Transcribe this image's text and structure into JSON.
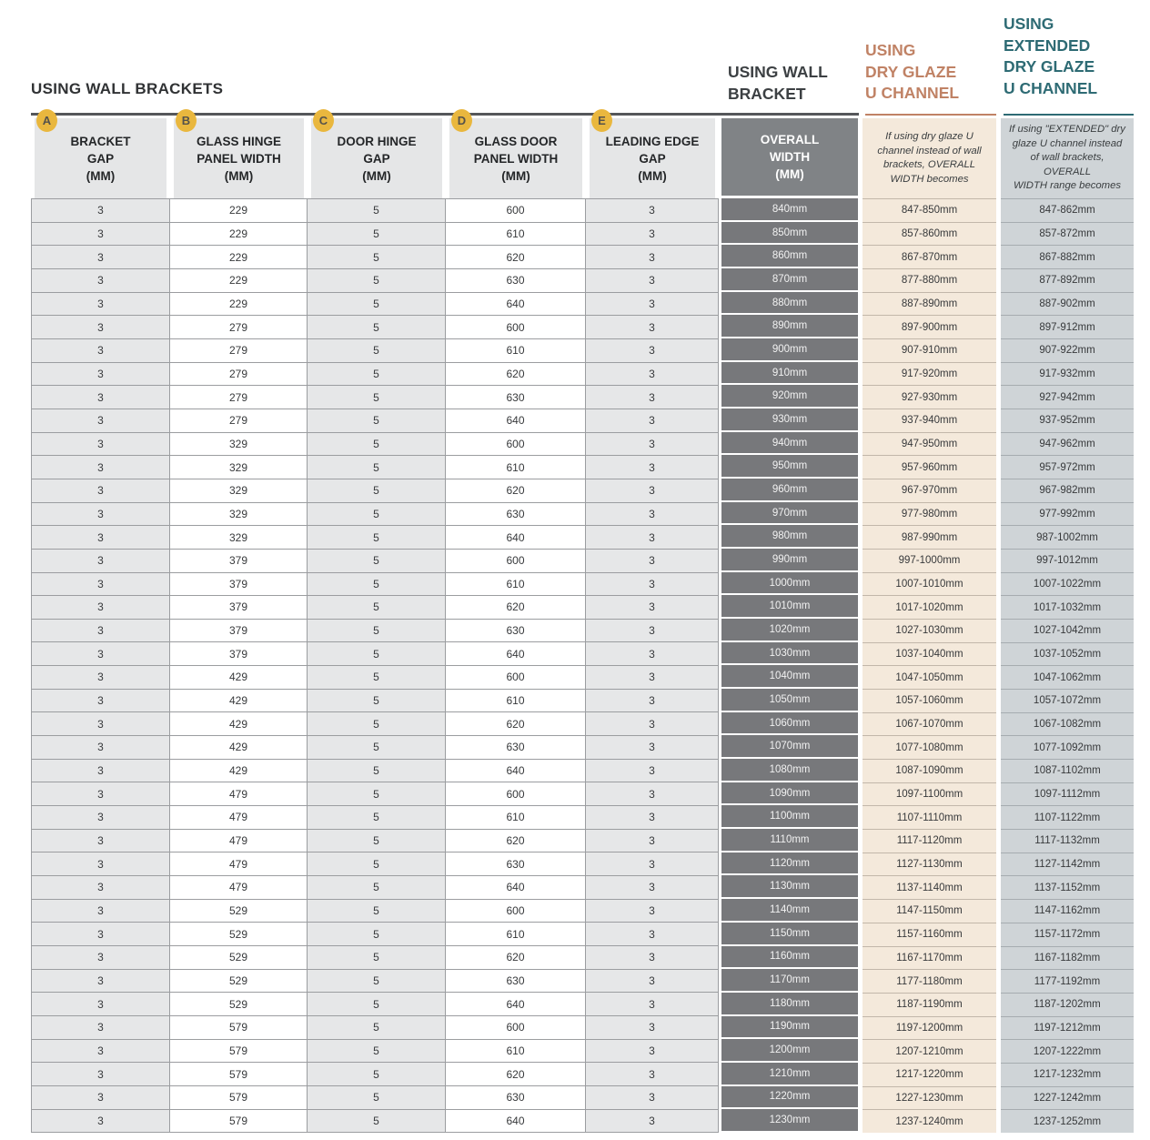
{
  "title": "USING WALL BRACKETS",
  "column_group_headers": {
    "wall_bracket": {
      "label": "USING WALL\nBRACKET",
      "color": "#3C4043"
    },
    "dry_glaze": {
      "label": "USING\nDRY GLAZE\nU CHANNEL",
      "color": "#C08265"
    },
    "extended_dry_glaze": {
      "label": "USING\nEXTENDED\nDRY GLAZE\nU CHANNEL",
      "color": "#2E6B74"
    }
  },
  "colors": {
    "badge_gold": "#E9B73E",
    "dark_column": "#77787B",
    "cream_column": "#F4E9DB",
    "bluegray_column": "#CFD4D7",
    "light_gray_cell": "#E6E7E8",
    "rule_dark": "#55575A"
  },
  "table": {
    "columns": [
      {
        "id": "bracket_gap",
        "badge": "A",
        "header": "BRACKET\nGAP\n(MM)",
        "style": "gray"
      },
      {
        "id": "glass_hinge_panel_width",
        "badge": "B",
        "header": "GLASS HINGE\nPANEL WIDTH\n(MM)",
        "style": "white"
      },
      {
        "id": "door_hinge_gap",
        "badge": "C",
        "header": "DOOR HINGE\nGAP\n(MM)",
        "style": "gray"
      },
      {
        "id": "glass_door_panel_width",
        "badge": "D",
        "header": "GLASS DOOR\nPANEL WIDTH\n(MM)",
        "style": "white"
      },
      {
        "id": "leading_edge_gap",
        "badge": "E",
        "header": "LEADING EDGE\nGAP\n(MM)",
        "style": "gray"
      },
      {
        "id": "overall_width",
        "header": "OVERALL\nWIDTH\n(MM)",
        "style": "dark"
      },
      {
        "id": "dry_glaze_width",
        "note": "If using dry glaze U\nchannel instead of wall\nbrackets, OVERALL\nWIDTH becomes",
        "style": "cream"
      },
      {
        "id": "extended_dry_glaze_width",
        "note": "If using \"EXTENDED\" dry\nglaze U channel instead\nof wall brackets, OVERALL\nWIDTH range becomes",
        "style": "bluegray"
      }
    ],
    "rows": [
      [
        "3",
        "229",
        "5",
        "600",
        "3",
        "840mm",
        "847-850mm",
        "847-862mm"
      ],
      [
        "3",
        "229",
        "5",
        "610",
        "3",
        "850mm",
        "857-860mm",
        "857-872mm"
      ],
      [
        "3",
        "229",
        "5",
        "620",
        "3",
        "860mm",
        "867-870mm",
        "867-882mm"
      ],
      [
        "3",
        "229",
        "5",
        "630",
        "3",
        "870mm",
        "877-880mm",
        "877-892mm"
      ],
      [
        "3",
        "229",
        "5",
        "640",
        "3",
        "880mm",
        "887-890mm",
        "887-902mm"
      ],
      [
        "3",
        "279",
        "5",
        "600",
        "3",
        "890mm",
        "897-900mm",
        "897-912mm"
      ],
      [
        "3",
        "279",
        "5",
        "610",
        "3",
        "900mm",
        "907-910mm",
        "907-922mm"
      ],
      [
        "3",
        "279",
        "5",
        "620",
        "3",
        "910mm",
        "917-920mm",
        "917-932mm"
      ],
      [
        "3",
        "279",
        "5",
        "630",
        "3",
        "920mm",
        "927-930mm",
        "927-942mm"
      ],
      [
        "3",
        "279",
        "5",
        "640",
        "3",
        "930mm",
        "937-940mm",
        "937-952mm"
      ],
      [
        "3",
        "329",
        "5",
        "600",
        "3",
        "940mm",
        "947-950mm",
        "947-962mm"
      ],
      [
        "3",
        "329",
        "5",
        "610",
        "3",
        "950mm",
        "957-960mm",
        "957-972mm"
      ],
      [
        "3",
        "329",
        "5",
        "620",
        "3",
        "960mm",
        "967-970mm",
        "967-982mm"
      ],
      [
        "3",
        "329",
        "5",
        "630",
        "3",
        "970mm",
        "977-980mm",
        "977-992mm"
      ],
      [
        "3",
        "329",
        "5",
        "640",
        "3",
        "980mm",
        "987-990mm",
        "987-1002mm"
      ],
      [
        "3",
        "379",
        "5",
        "600",
        "3",
        "990mm",
        "997-1000mm",
        "997-1012mm"
      ],
      [
        "3",
        "379",
        "5",
        "610",
        "3",
        "1000mm",
        "1007-1010mm",
        "1007-1022mm"
      ],
      [
        "3",
        "379",
        "5",
        "620",
        "3",
        "1010mm",
        "1017-1020mm",
        "1017-1032mm"
      ],
      [
        "3",
        "379",
        "5",
        "630",
        "3",
        "1020mm",
        "1027-1030mm",
        "1027-1042mm"
      ],
      [
        "3",
        "379",
        "5",
        "640",
        "3",
        "1030mm",
        "1037-1040mm",
        "1037-1052mm"
      ],
      [
        "3",
        "429",
        "5",
        "600",
        "3",
        "1040mm",
        "1047-1050mm",
        "1047-1062mm"
      ],
      [
        "3",
        "429",
        "5",
        "610",
        "3",
        "1050mm",
        "1057-1060mm",
        "1057-1072mm"
      ],
      [
        "3",
        "429",
        "5",
        "620",
        "3",
        "1060mm",
        "1067-1070mm",
        "1067-1082mm"
      ],
      [
        "3",
        "429",
        "5",
        "630",
        "3",
        "1070mm",
        "1077-1080mm",
        "1077-1092mm"
      ],
      [
        "3",
        "429",
        "5",
        "640",
        "3",
        "1080mm",
        "1087-1090mm",
        "1087-1102mm"
      ],
      [
        "3",
        "479",
        "5",
        "600",
        "3",
        "1090mm",
        "1097-1100mm",
        "1097-1112mm"
      ],
      [
        "3",
        "479",
        "5",
        "610",
        "3",
        "1100mm",
        "1107-1110mm",
        "1107-1122mm"
      ],
      [
        "3",
        "479",
        "5",
        "620",
        "3",
        "1110mm",
        "1117-1120mm",
        "1117-1132mm"
      ],
      [
        "3",
        "479",
        "5",
        "630",
        "3",
        "1120mm",
        "1127-1130mm",
        "1127-1142mm"
      ],
      [
        "3",
        "479",
        "5",
        "640",
        "3",
        "1130mm",
        "1137-1140mm",
        "1137-1152mm"
      ],
      [
        "3",
        "529",
        "5",
        "600",
        "3",
        "1140mm",
        "1147-1150mm",
        "1147-1162mm"
      ],
      [
        "3",
        "529",
        "5",
        "610",
        "3",
        "1150mm",
        "1157-1160mm",
        "1157-1172mm"
      ],
      [
        "3",
        "529",
        "5",
        "620",
        "3",
        "1160mm",
        "1167-1170mm",
        "1167-1182mm"
      ],
      [
        "3",
        "529",
        "5",
        "630",
        "3",
        "1170mm",
        "1177-1180mm",
        "1177-1192mm"
      ],
      [
        "3",
        "529",
        "5",
        "640",
        "3",
        "1180mm",
        "1187-1190mm",
        "1187-1202mm"
      ],
      [
        "3",
        "579",
        "5",
        "600",
        "3",
        "1190mm",
        "1197-1200mm",
        "1197-1212mm"
      ],
      [
        "3",
        "579",
        "5",
        "610",
        "3",
        "1200mm",
        "1207-1210mm",
        "1207-1222mm"
      ],
      [
        "3",
        "579",
        "5",
        "620",
        "3",
        "1210mm",
        "1217-1220mm",
        "1217-1232mm"
      ],
      [
        "3",
        "579",
        "5",
        "630",
        "3",
        "1220mm",
        "1227-1230mm",
        "1227-1242mm"
      ],
      [
        "3",
        "579",
        "5",
        "640",
        "3",
        "1230mm",
        "1237-1240mm",
        "1237-1252mm"
      ]
    ]
  }
}
